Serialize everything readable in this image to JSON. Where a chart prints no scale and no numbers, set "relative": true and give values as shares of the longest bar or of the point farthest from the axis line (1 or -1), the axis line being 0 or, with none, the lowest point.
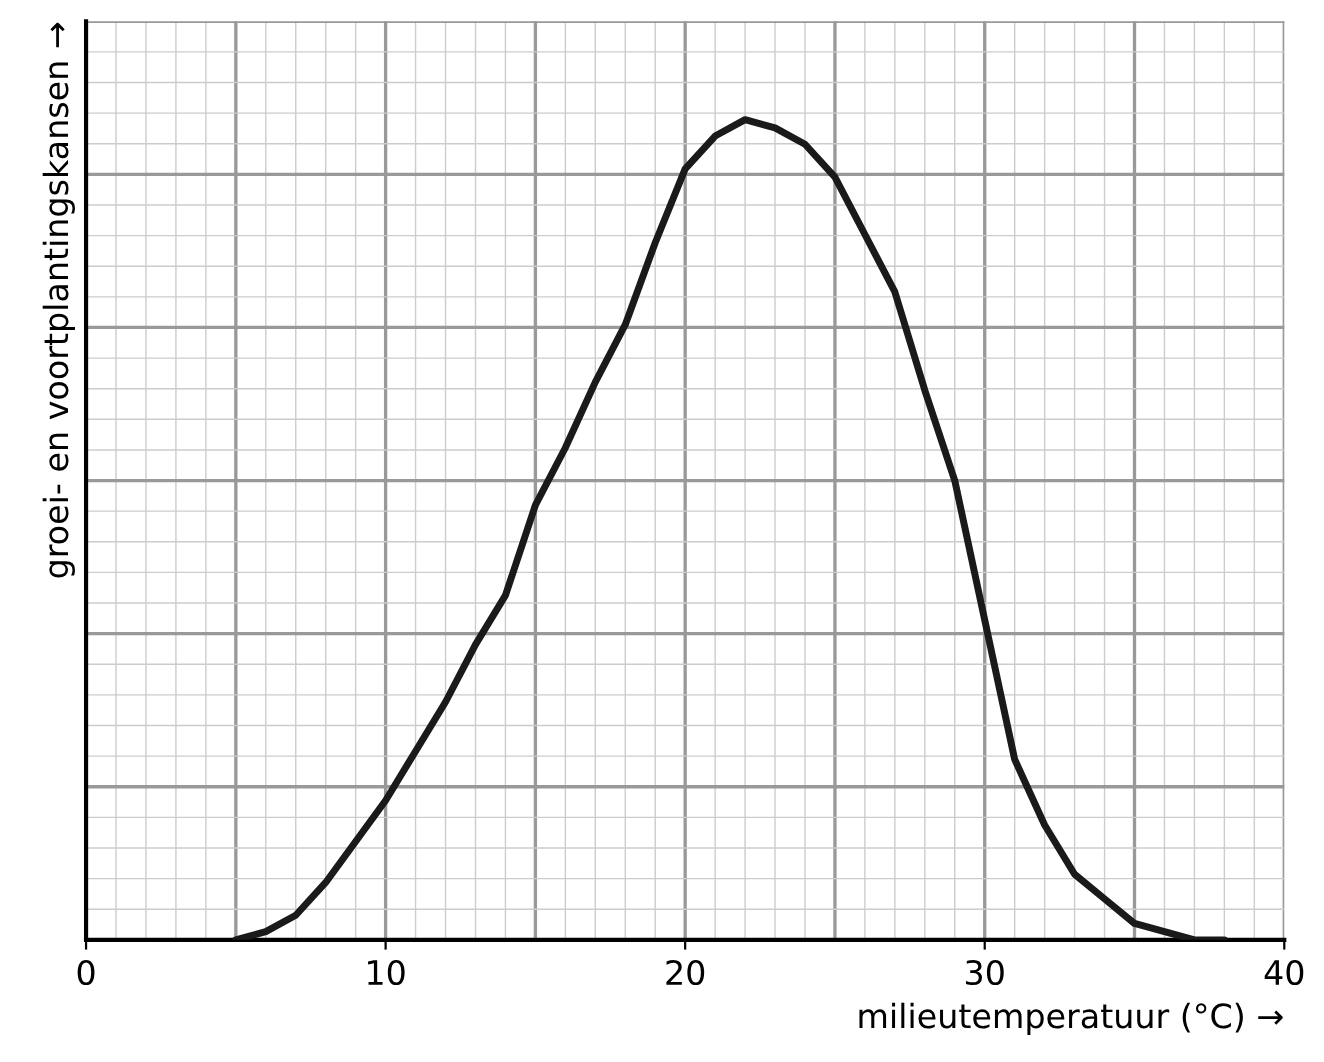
{
  "chart_data": {
    "type": "line",
    "relative": true,
    "xlabel": "milieutemperatuur (°C) →",
    "ylabel": "groei- en voortplantingskansen →",
    "x": [
      5,
      6,
      7,
      8,
      9,
      10,
      11,
      12,
      13,
      14,
      15,
      16,
      17,
      18,
      19,
      20,
      21,
      22,
      23,
      24,
      25,
      26,
      27,
      28,
      29,
      30,
      31,
      32,
      33,
      34,
      35,
      36,
      37,
      38
    ],
    "series": [
      {
        "color": "#1a1a1a",
        "values": [
          0,
          0.01,
          0.03,
          0.07,
          0.12,
          0.17,
          0.23,
          0.29,
          0.36,
          0.42,
          0.53,
          0.6,
          0.68,
          0.75,
          0.85,
          0.94,
          0.98,
          1,
          0.99,
          0.97,
          0.93,
          0.86,
          0.79,
          0.67,
          0.56,
          0.39,
          0.22,
          0.14,
          0.08,
          0.05,
          0.02,
          0.01,
          0,
          0
        ]
      }
    ],
    "xlim": [
      0,
      40
    ],
    "xticks": [
      0,
      10,
      20,
      30,
      40
    ],
    "grid": true,
    "line_style": "solid",
    "marker": "none"
  }
}
